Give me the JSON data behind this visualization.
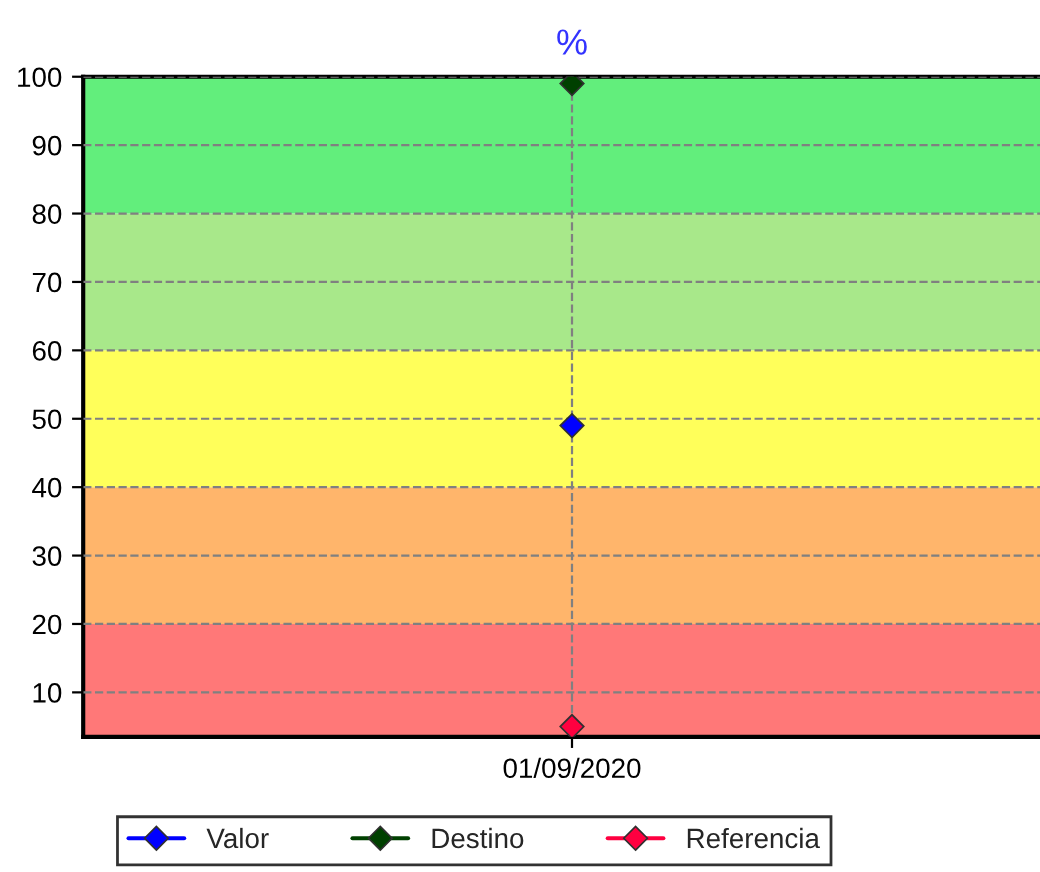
{
  "chart_data": {
    "type": "line",
    "title": "%",
    "categories": [
      "01/09/2020"
    ],
    "series": [
      {
        "name": "Valor",
        "color": "#0000ff",
        "values": [
          49
        ]
      },
      {
        "name": "Destino",
        "color": "#004000",
        "values": [
          99
        ]
      },
      {
        "name": "Referencia",
        "color": "#ff0040",
        "values": [
          5
        ]
      }
    ],
    "ylim": [
      3.5,
      100
    ],
    "yticks": [
      10,
      20,
      30,
      40,
      50,
      60,
      70,
      80,
      90,
      100
    ],
    "bands": [
      {
        "axis": "y",
        "from": 3.5,
        "to": 20,
        "color": "#ff7878"
      },
      {
        "axis": "y",
        "from": 20,
        "to": 40,
        "color": "#ffb56b"
      },
      {
        "axis": "y",
        "from": 40,
        "to": 60,
        "color": "#ffff5a"
      },
      {
        "axis": "y",
        "from": 60,
        "to": 80,
        "color": "#a8e88a"
      },
      {
        "axis": "y",
        "from": 80,
        "to": 100,
        "color": "#62ee7c"
      }
    ],
    "grid": true,
    "legend": "bottom",
    "marker": "diamond"
  }
}
